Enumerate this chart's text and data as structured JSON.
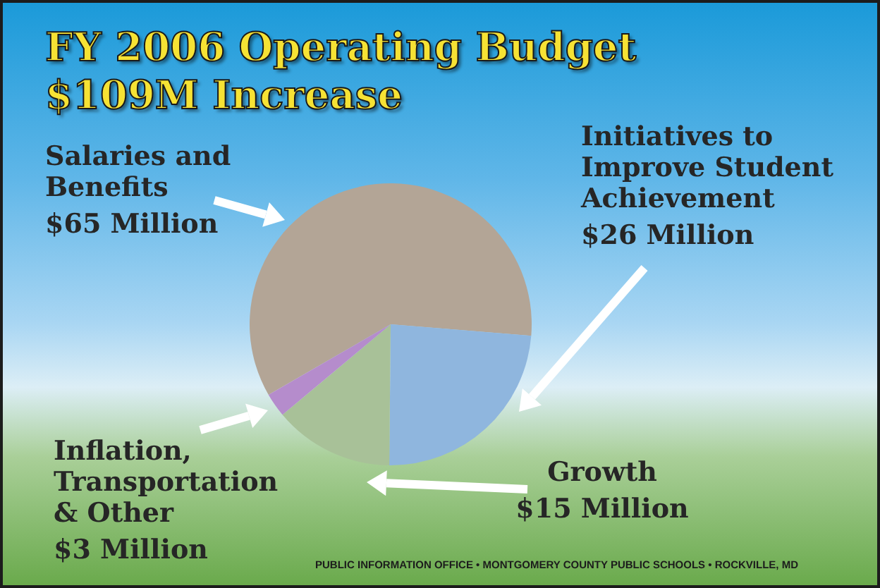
{
  "chart_data": {
    "type": "pie",
    "title": "FY 2006 Operating Budget",
    "subtitle": "$109M Increase",
    "categories": [
      "Salaries and Benefits",
      "Initiatives to Improve Student Achievement",
      "Growth",
      "Inflation, Transportation & Other"
    ],
    "values": [
      65,
      26,
      15,
      3
    ],
    "value_labels": [
      "$65 Million",
      "$26 Million",
      "$15 Million",
      "$3 Million"
    ],
    "colors": [
      "#b3a596",
      "#8fb6de",
      "#a8c198",
      "#b58ccc"
    ],
    "annotations": [
      "PUBLIC INFORMATION OFFICE • MONTGOMERY COUNTY PUBLIC SCHOOLS • ROCKVILLE, MD"
    ]
  }
}
